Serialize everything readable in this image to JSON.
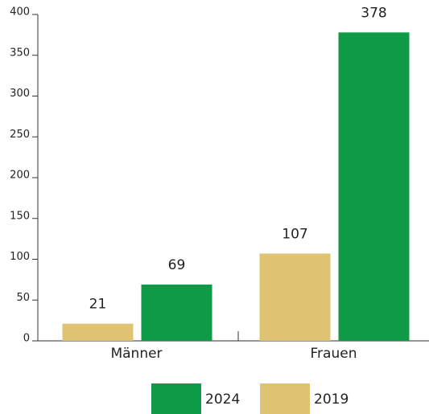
{
  "chart_data": {
    "type": "bar",
    "categories": [
      "Männer",
      "Frauen"
    ],
    "series": [
      {
        "name": "2019",
        "color": "#dfc373",
        "values": [
          21,
          107
        ]
      },
      {
        "name": "2024",
        "color": "#0f9a48",
        "values": [
          69,
          378
        ]
      }
    ],
    "ylim": [
      0,
      400
    ],
    "yticks": [
      0,
      50,
      100,
      150,
      200,
      250,
      300,
      350,
      400
    ],
    "grid": false
  }
}
